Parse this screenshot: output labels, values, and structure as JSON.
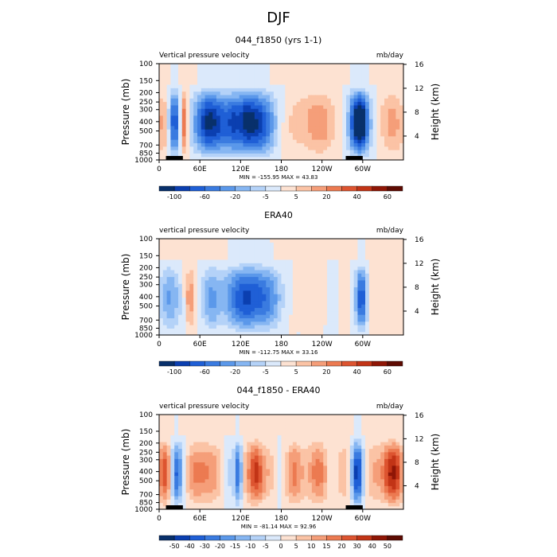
{
  "page": {
    "title": "DJF"
  },
  "chart_data": [
    {
      "type": "heatmap",
      "title": "044_f1850 (yrs 1-1)",
      "subtitle_left": "Vertical pressure velocity",
      "subtitle_right": "mb/day",
      "ylabel": "Pressure (mb)",
      "ylabel_right": "Height (km)",
      "x_ticks": [
        "0",
        "60E",
        "120E",
        "180",
        "120W",
        "60W"
      ],
      "y_ticks": [
        "100",
        "150",
        "200",
        "250",
        "300",
        "400",
        "500",
        "700",
        "850",
        "1000"
      ],
      "y_ticks_right": [
        "16",
        "12",
        "8",
        "4"
      ],
      "min_max": "MIN = -155.95   MAX =  43.83",
      "colorbar": {
        "labels": [
          "-100",
          "-60",
          "-20",
          "-5",
          "5",
          "20",
          "40",
          "60"
        ],
        "colors": [
          "#08306b",
          "#0b3fb0",
          "#1f5fd6",
          "#3a7be0",
          "#5b98ea",
          "#86b6f2",
          "#b4d2f8",
          "#dbe9fb",
          "#fde2d2",
          "#fbc3a5",
          "#f59e79",
          "#ec7a51",
          "#dd5430",
          "#c23416",
          "#8f1606",
          "#5e0b02"
        ]
      },
      "field": "model",
      "ylim": [
        1000,
        100
      ]
    },
    {
      "type": "heatmap",
      "title": "ERA40",
      "subtitle_left": "vertical pressure velocity",
      "subtitle_right": "mb/day",
      "ylabel": "Pressure (mb)",
      "ylabel_right": "Height (km)",
      "x_ticks": [
        "0",
        "60E",
        "120E",
        "180",
        "120W",
        "60W"
      ],
      "y_ticks": [
        "100",
        "150",
        "200",
        "250",
        "300",
        "400",
        "500",
        "700",
        "850",
        "1000"
      ],
      "y_ticks_right": [
        "16",
        "12",
        "8",
        "4"
      ],
      "min_max": "MIN = -112.75   MAX =  33.16",
      "colorbar": {
        "labels": [
          "-100",
          "-60",
          "-20",
          "-5",
          "5",
          "20",
          "40",
          "60"
        ],
        "colors": [
          "#08306b",
          "#0b3fb0",
          "#1f5fd6",
          "#3a7be0",
          "#5b98ea",
          "#86b6f2",
          "#b4d2f8",
          "#dbe9fb",
          "#fde2d2",
          "#fbc3a5",
          "#f59e79",
          "#ec7a51",
          "#dd5430",
          "#c23416",
          "#8f1606",
          "#5e0b02"
        ]
      },
      "field": "obs",
      "ylim": [
        1000,
        100
      ]
    },
    {
      "type": "heatmap",
      "title": "044_f1850 - ERA40",
      "subtitle_left": "vertical pressure velocity",
      "subtitle_right": "mb/day",
      "ylabel": "Pressure (mb)",
      "ylabel_right": "Height (km)",
      "x_ticks": [
        "0",
        "60E",
        "120E",
        "180",
        "120W",
        "60W"
      ],
      "y_ticks": [
        "100",
        "150",
        "200",
        "250",
        "300",
        "400",
        "500",
        "700",
        "850",
        "1000"
      ],
      "y_ticks_right": [
        "16",
        "12",
        "8",
        "4"
      ],
      "min_max": "MIN = -81.14   MAX =  92.96",
      "colorbar": {
        "labels": [
          "-50",
          "-40",
          "-30",
          "-20",
          "-15",
          "-10",
          "-5",
          "0",
          "5",
          "10",
          "15",
          "20",
          "30",
          "40",
          "50"
        ],
        "colors": [
          "#08306b",
          "#0b3fb0",
          "#1f5fd6",
          "#3a7be0",
          "#5b98ea",
          "#86b6f2",
          "#b4d2f8",
          "#dbe9fb",
          "#fde2d2",
          "#fbc3a5",
          "#f59e79",
          "#ec7a51",
          "#dd5430",
          "#c23416",
          "#8f1606",
          "#5e0b02"
        ]
      },
      "field": "diff",
      "ylim": [
        1000,
        100
      ]
    }
  ]
}
